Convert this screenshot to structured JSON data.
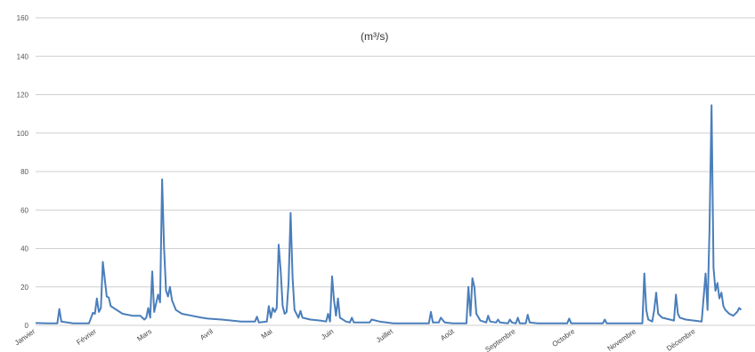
{
  "chart_data": {
    "type": "line",
    "title": "",
    "unit_label": "(m³/s)",
    "xlabel": "",
    "ylabel": "",
    "ylim": [
      0,
      160
    ],
    "yticks": [
      0,
      20,
      40,
      60,
      80,
      100,
      120,
      140,
      160
    ],
    "ytick_labels": [
      "0",
      "20",
      "40",
      "60",
      "80",
      "100",
      "120",
      "140",
      "160"
    ],
    "grid": true,
    "months": [
      "Janvier",
      "Février",
      "Mars",
      "Avril",
      "Mai",
      "Juin",
      "Juillet",
      "Août",
      "Septembre",
      "Octobre",
      "Novembre",
      "Décembre"
    ],
    "series": [
      {
        "color": "#4a7ebb",
        "points": [
          [
            1,
            1.2
          ],
          [
            7,
            1.0
          ],
          [
            12,
            1.0
          ],
          [
            13,
            8.5
          ],
          [
            14,
            2.0
          ],
          [
            20,
            1.0
          ],
          [
            28,
            1.0
          ],
          [
            30,
            6.5
          ],
          [
            31,
            6.0
          ],
          [
            32,
            14.0
          ],
          [
            33,
            7.0
          ],
          [
            34,
            9.0
          ],
          [
            35,
            33.0
          ],
          [
            36,
            24.0
          ],
          [
            37,
            15.0
          ],
          [
            38,
            14.5
          ],
          [
            39,
            10.0
          ],
          [
            45,
            6.0
          ],
          [
            50,
            5.0
          ],
          [
            54,
            5.0
          ],
          [
            56,
            3.0
          ],
          [
            57,
            4.0
          ],
          [
            58,
            9.0
          ],
          [
            59,
            4.0
          ],
          [
            60,
            28.0
          ],
          [
            61,
            7.0
          ],
          [
            63,
            16.0
          ],
          [
            64,
            12.0
          ],
          [
            65,
            76.0
          ],
          [
            66,
            40.0
          ],
          [
            67,
            18.0
          ],
          [
            68,
            15.0
          ],
          [
            69,
            20.0
          ],
          [
            70,
            13.0
          ],
          [
            72,
            8.0
          ],
          [
            75,
            6.0
          ],
          [
            80,
            5.0
          ],
          [
            85,
            4.0
          ],
          [
            88,
            3.5
          ],
          [
            95,
            3.0
          ],
          [
            105,
            2.0
          ],
          [
            112,
            2.0
          ],
          [
            113,
            4.5
          ],
          [
            114,
            1.5
          ],
          [
            118,
            2.0
          ],
          [
            119,
            10.0
          ],
          [
            120,
            4.0
          ],
          [
            121,
            9.0
          ],
          [
            122,
            7.0
          ],
          [
            123,
            9.0
          ],
          [
            124,
            42.0
          ],
          [
            125,
            28.0
          ],
          [
            126,
            10.0
          ],
          [
            127,
            6.0
          ],
          [
            128,
            7.0
          ],
          [
            129,
            22.0
          ],
          [
            130,
            58.5
          ],
          [
            131,
            25.0
          ],
          [
            132,
            8.0
          ],
          [
            134,
            4.0
          ],
          [
            135,
            7.5
          ],
          [
            136,
            4.0
          ],
          [
            140,
            3.0
          ],
          [
            145,
            2.5
          ],
          [
            148,
            2.0
          ],
          [
            149,
            6.0
          ],
          [
            150,
            2.0
          ],
          [
            151,
            25.5
          ],
          [
            152,
            13.0
          ],
          [
            153,
            5.0
          ],
          [
            154,
            14.0
          ],
          [
            155,
            4.0
          ],
          [
            158,
            2.0
          ],
          [
            160,
            1.5
          ],
          [
            161,
            4.0
          ],
          [
            162,
            1.5
          ],
          [
            170,
            1.5
          ],
          [
            171,
            3.0
          ],
          [
            175,
            2.0
          ],
          [
            182,
            1.0
          ],
          [
            190,
            1.0
          ],
          [
            200,
            1.0
          ],
          [
            201,
            7.0
          ],
          [
            202,
            1.5
          ],
          [
            205,
            1.5
          ],
          [
            206,
            4.0
          ],
          [
            208,
            1.5
          ],
          [
            212,
            1.0
          ],
          [
            219,
            1.0
          ],
          [
            220,
            20.0
          ],
          [
            221,
            5.0
          ],
          [
            222,
            24.5
          ],
          [
            223,
            20.0
          ],
          [
            224,
            6.0
          ],
          [
            226,
            2.5
          ],
          [
            229,
            1.5
          ],
          [
            230,
            5.0
          ],
          [
            231,
            2.0
          ],
          [
            234,
            1.5
          ],
          [
            235,
            3.0
          ],
          [
            236,
            1.5
          ],
          [
            240,
            1.0
          ],
          [
            241,
            3.0
          ],
          [
            242,
            1.5
          ],
          [
            244,
            1.0
          ],
          [
            245,
            4.0
          ],
          [
            246,
            1.0
          ],
          [
            249,
            1.0
          ],
          [
            250,
            5.5
          ],
          [
            251,
            1.5
          ],
          [
            255,
            1.0
          ],
          [
            260,
            1.0
          ],
          [
            270,
            1.0
          ],
          [
            271,
            3.5
          ],
          [
            272,
            1.0
          ],
          [
            285,
            1.0
          ],
          [
            288,
            1.0
          ],
          [
            289,
            3.0
          ],
          [
            290,
            1.0
          ],
          [
            300,
            1.0
          ],
          [
            308,
            1.0
          ],
          [
            309,
            27.0
          ],
          [
            310,
            8.0
          ],
          [
            311,
            3.0
          ],
          [
            313,
            2.0
          ],
          [
            314,
            8.0
          ],
          [
            315,
            17.0
          ],
          [
            316,
            6.0
          ],
          [
            318,
            4.0
          ],
          [
            322,
            3.0
          ],
          [
            324,
            2.5
          ],
          [
            325,
            16.0
          ],
          [
            326,
            6.0
          ],
          [
            327,
            4.0
          ],
          [
            330,
            3.0
          ],
          [
            334,
            2.5
          ],
          [
            338,
            2.0
          ],
          [
            340,
            27.0
          ],
          [
            341,
            8.0
          ],
          [
            342,
            50.0
          ],
          [
            343,
            114.5
          ],
          [
            344,
            30.0
          ],
          [
            345,
            18.0
          ],
          [
            346,
            22.0
          ],
          [
            347,
            14.0
          ],
          [
            348,
            17.0
          ],
          [
            349,
            10.0
          ],
          [
            350,
            8.0
          ],
          [
            352,
            6.0
          ],
          [
            354,
            5.0
          ],
          [
            356,
            7.0
          ],
          [
            357,
            9.0
          ],
          [
            358,
            8.0
          ]
        ]
      }
    ]
  }
}
